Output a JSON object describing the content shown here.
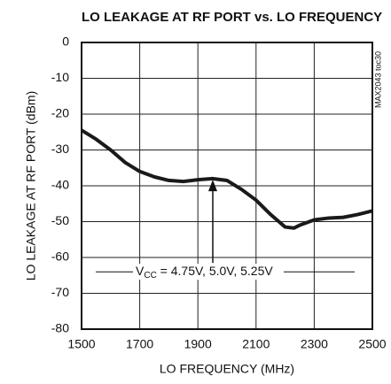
{
  "chart_data": {
    "type": "line",
    "title": "LO LEAKAGE AT RF PORT vs. LO FREQUENCY",
    "x_label": "LO FREQUENCY (MHz)",
    "y_label": "LO LEAKAGE AT RF PORT (dBm)",
    "side_note": "MAX2043 toc30",
    "annotation": {
      "text": "V",
      "sub": "CC",
      "rest": " = 4.75V, 5.0V, 5.25V"
    },
    "x": [
      1500,
      1550,
      1600,
      1650,
      1700,
      1750,
      1800,
      1850,
      1900,
      1950,
      2000,
      2050,
      2100,
      2150,
      2200,
      2230,
      2250,
      2300,
      2350,
      2400,
      2450,
      2500
    ],
    "series": [
      {
        "color": "#1a1a1a",
        "values": [
          -24.5,
          -27,
          -30,
          -33.5,
          -36,
          -37.5,
          -38.5,
          -38.8,
          -38.3,
          -38,
          -38.5,
          -41,
          -44,
          -48,
          -51.5,
          -51.8,
          -51,
          -49.5,
          -49,
          -48.8,
          -48,
          -47
        ]
      }
    ],
    "xlim": [
      1500,
      2500
    ],
    "xticks": [
      1500,
      1700,
      1900,
      2100,
      2300,
      2500
    ],
    "ylim": [
      -80,
      0
    ],
    "yticks": [
      -80,
      -70,
      -60,
      -50,
      -40,
      -30,
      -20,
      -10,
      0
    ],
    "grid": true
  }
}
